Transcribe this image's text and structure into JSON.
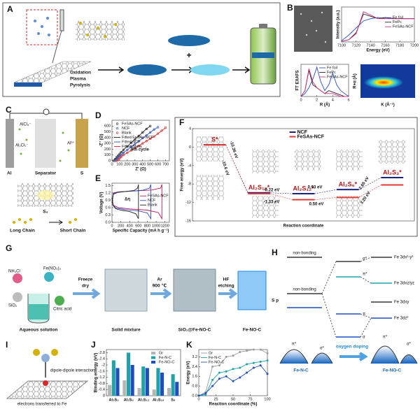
{
  "figure": {
    "panel_labels": [
      "A",
      "B",
      "C",
      "D",
      "E",
      "F",
      "G",
      "H",
      "I",
      "J",
      "K"
    ],
    "a_steps": [
      "Oxidation",
      "Plasma",
      "Pyrolysis"
    ],
    "b_wavelet": {
      "xlabel": "K (Å⁻¹)",
      "ylabel": "R+α (Å)"
    },
    "c_labels": [
      "AlCl₄⁻",
      "Al₂Cl₇⁻",
      "Al",
      "Separator",
      "S",
      "Al³⁺",
      "S₈",
      "Long Chain",
      "Short Chain"
    ],
    "g_labels": [
      "NH₄Cl",
      "Fe(NO₃)₃",
      "SiO₂",
      "Citric acid",
      "Aqueous solution",
      "Freeze",
      "dry",
      "Solid mixture",
      "Ar",
      "900 ℃",
      "SiO₂@Fe-NO-C",
      "HF",
      "etching",
      "Fe-NO-C"
    ],
    "h_labels": [
      "Fe 3dx²-y²",
      "non-bonding",
      "σ*",
      "π*",
      "Fe 3dxz/yz",
      "S p",
      "non-bonding",
      "Fe 3dxy",
      "π",
      "Fe 3dz²",
      "σ",
      "oxygen doping",
      "π*",
      "σ*",
      "π*",
      "σ*",
      "Fe-N-C",
      "Fe-NO-C"
    ],
    "i_labels": [
      "dipole-dipole interaction",
      "electrons transferred to Fe"
    ]
  },
  "chart_data": [
    {
      "type": "line",
      "xlabel": "Energy (eV)",
      "ylabel": "Intensity (a.u.)",
      "x": [
        7100,
        7110,
        7120,
        7130,
        7140,
        7150,
        7160,
        7170,
        7180,
        7190,
        7200
      ],
      "xlim": [
        7100,
        7200
      ],
      "xticks": [
        7100,
        7120,
        7140,
        7160,
        7180,
        7200
      ],
      "ylim": [
        0,
        1.5
      ],
      "legend": "center right",
      "series": [
        {
          "name": "Fe foil",
          "color": "#2b4fc4",
          "values": [
            0.05,
            0.3,
            0.6,
            0.9,
            1.0,
            1.05,
            1.0,
            1.0,
            1.0,
            1.0,
            1.0
          ]
        },
        {
          "name": "FePc",
          "color": "#222222",
          "values": [
            0.02,
            0.1,
            0.4,
            1.2,
            1.1,
            1.0,
            1.05,
            1.0,
            1.0,
            1.0,
            1.0
          ]
        },
        {
          "name": "FeSAs-NCF",
          "color": "#d63384",
          "values": [
            0.02,
            0.1,
            0.35,
            1.3,
            1.15,
            1.0,
            1.0,
            1.02,
            1.0,
            1.0,
            1.0
          ]
        }
      ]
    },
    {
      "type": "line",
      "xlabel": "R (Å)",
      "ylabel": "FT EXAFS",
      "x": [
        0,
        0.5,
        1,
        1.5,
        2,
        2.5,
        3,
        3.5,
        4,
        4.5,
        5,
        5.5,
        6
      ],
      "xlim": [
        0,
        6
      ],
      "xticks": [
        0,
        2,
        4,
        6
      ],
      "ylim": [
        0,
        1.1
      ],
      "legend": "upper right",
      "series": [
        {
          "name": "Fe foil",
          "color": "#2b4fc4",
          "values": [
            0,
            0.1,
            0.3,
            0.6,
            1.0,
            0.5,
            0.2,
            0.4,
            0.8,
            0.4,
            0.2,
            0.1,
            0
          ]
        },
        {
          "name": "FePc",
          "color": "#222222",
          "values": [
            0,
            0.2,
            0.9,
            0.4,
            0.3,
            0.2,
            0.1,
            0.2,
            0.15,
            0.1,
            0.05,
            0,
            0
          ]
        },
        {
          "name": "FeSAs-NCF",
          "color": "#d63384",
          "values": [
            0,
            0.2,
            0.95,
            0.5,
            0.3,
            0.2,
            0.1,
            0.1,
            0.1,
            0.05,
            0,
            0,
            0
          ]
        }
      ]
    },
    {
      "type": "line",
      "xlabel": "Z' (Ω)",
      "ylabel": "-Z'' (Ω)",
      "annotations": [
        "9th cycle"
      ],
      "x": [
        20,
        40,
        60,
        80,
        100,
        120,
        150,
        200,
        250,
        300,
        350,
        400,
        450,
        500,
        550,
        600,
        650,
        700
      ],
      "xlim": [
        0,
        750
      ],
      "xticks": [
        0,
        100,
        200,
        300,
        400,
        500,
        600,
        700
      ],
      "ylim": [
        0,
        700
      ],
      "yticks": [
        0,
        100,
        200,
        300,
        400,
        500,
        600
      ],
      "legend": "upper left",
      "series": [
        {
          "name": "FeSAs-NCF",
          "color": "#222222",
          "style": "marker",
          "values": [
            0,
            30,
            60,
            90,
            120,
            150,
            190,
            250,
            310,
            370,
            430,
            490,
            550,
            600,
            null,
            null,
            null,
            null
          ]
        },
        {
          "name": "NCF",
          "color": "#2b4fc4",
          "style": "marker",
          "values": [
            null,
            0,
            25,
            55,
            80,
            105,
            140,
            190,
            240,
            290,
            340,
            390,
            440,
            490,
            540,
            580,
            null,
            null
          ]
        },
        {
          "name": "Blank",
          "color": "#d62828",
          "style": "marker",
          "values": [
            null,
            null,
            0,
            20,
            45,
            70,
            100,
            140,
            180,
            220,
            260,
            300,
            340,
            380,
            420,
            470,
            520,
            570
          ]
        },
        {
          "name": "Fitted FeSAs-NCF",
          "color": "#222222",
          "values": [
            0,
            30,
            60,
            90,
            120,
            150,
            190,
            250,
            310,
            370,
            430,
            490,
            550,
            600,
            null,
            null,
            null,
            null
          ]
        },
        {
          "name": "Fitted NCF",
          "color": "#2b4fc4",
          "values": [
            null,
            0,
            25,
            55,
            80,
            105,
            140,
            190,
            240,
            290,
            340,
            390,
            440,
            490,
            540,
            580,
            null,
            null
          ]
        },
        {
          "name": "Fitted Blank",
          "color": "#d62828",
          "values": [
            null,
            null,
            0,
            20,
            45,
            70,
            100,
            140,
            180,
            220,
            260,
            300,
            340,
            380,
            420,
            470,
            520,
            570
          ]
        }
      ]
    },
    {
      "type": "line",
      "xlabel": "Specific Capacity (mA h g⁻¹)",
      "ylabel": "Voltage (V)",
      "annotations": [
        "Δη"
      ],
      "xlim": [
        0,
        1300
      ],
      "xticks": [
        0,
        200,
        400,
        600,
        800,
        1000,
        1200
      ],
      "ylim": [
        0,
        1.6
      ],
      "yticks": [
        {
          "value": 0,
          "label": "0.0"
        },
        0.3,
        0.6,
        0.9,
        1.2,
        1.5
      ],
      "legend": "center right",
      "series": [
        {
          "name": "FeSAs-NCF",
          "color": "#c2185b",
          "x": [
            0,
            30,
            150,
            500,
            900,
            1100,
            1130,
            1130,
            1050,
            800,
            400,
            150,
            30,
            0
          ],
          "values": [
            0.8,
            1.2,
            1.25,
            1.28,
            1.32,
            1.4,
            1.55,
            0.15,
            0.4,
            0.5,
            0.55,
            0.6,
            0.7,
            1.0
          ]
        },
        {
          "name": "NCF",
          "color": "#2b4fc4",
          "x": [
            0,
            30,
            150,
            400,
            700,
            850,
            880,
            880,
            800,
            600,
            300,
            100,
            20,
            0
          ],
          "values": [
            0.8,
            1.18,
            1.24,
            1.27,
            1.31,
            1.4,
            1.55,
            0.15,
            0.38,
            0.47,
            0.52,
            0.58,
            0.7,
            1.0
          ]
        },
        {
          "name": "Blank",
          "color": "#222222",
          "x": [
            0,
            30,
            120,
            300,
            500,
            580,
            600,
            600,
            540,
            400,
            200,
            80,
            20,
            0
          ],
          "values": [
            0.8,
            1.15,
            1.22,
            1.26,
            1.3,
            1.4,
            1.55,
            0.15,
            0.35,
            0.44,
            0.5,
            0.56,
            0.7,
            1.0
          ]
        }
      ]
    },
    {
      "type": "energy",
      "xlabel": "Reaction coordinate",
      "ylabel": "Free energy (eV)",
      "categories": [
        "S*",
        "Al₂S₁₈*",
        "Al₂S₁₂*",
        "Al₂S₆*",
        "Al₂S₃*"
      ],
      "ylim": [
        -16,
        4
      ],
      "yticks": [
        4,
        0,
        -4,
        -8,
        -12,
        -16
      ],
      "legend": "upper center",
      "annotations": [
        "-10.36 eV",
        "-10.6 eV",
        "-0.22 eV",
        "-1.33 eV",
        "0.93 eV",
        "0.50 eV",
        "2.65 eV",
        "3.20 eV"
      ],
      "series": [
        {
          "name": "NCF",
          "color": "#1a237e",
          "values": [
            0.5,
            -9.9,
            -10.1,
            -9.2,
            -6.6
          ]
        },
        {
          "name": "FeSAs-NCF",
          "color": "#e53935",
          "values": [
            0.5,
            -10.1,
            -11.4,
            -10.9,
            -8.2
          ]
        }
      ]
    },
    {
      "type": "bar",
      "ylabel": "Binding energy (eV)",
      "categories": [
        "Al₂S₃",
        "Al₂S₆",
        "Al₂S₁₂",
        "Al₂S₁₈",
        "S₈"
      ],
      "ylim": [
        0,
        -3
      ],
      "yticks": [
        0,
        -0.4,
        -0.8,
        -1.2,
        -1.6,
        -2.0,
        -2.4,
        -2.8
      ],
      "legend": "upper right",
      "series": [
        {
          "name": "Gr",
          "color": "#b5b5b5",
          "values": [
            -0.7,
            -1.0,
            -0.5,
            -0.4,
            -0.5
          ]
        },
        {
          "name": "Fe-N-C",
          "color": "#1fa3a8",
          "values": [
            -2.3,
            -2.8,
            -1.9,
            -1.8,
            -1.4
          ]
        },
        {
          "name": "Fe-NO-C",
          "color": "#1f4fbf",
          "values": [
            -1.8,
            -2.0,
            -1.8,
            -1.5,
            -0.9
          ]
        }
      ]
    },
    {
      "type": "line",
      "xlabel": "Reaction coordinate (%)",
      "ylabel": "Energy (eV)",
      "markers": true,
      "x": [
        0,
        10,
        20,
        30,
        40,
        50,
        60,
        70,
        80,
        90,
        100
      ],
      "xlim": [
        0,
        100
      ],
      "xticks": [
        0,
        25,
        50,
        75,
        100
      ],
      "ylim": [
        0,
        3.8
      ],
      "yticks": [
        {
          "value": 0,
          "label": "0.0"
        },
        0.8,
        1.6,
        2.4,
        3.2
      ],
      "legend": "upper left",
      "series": [
        {
          "name": "Gr",
          "color": "#9e9e9e",
          "values": [
            0,
            0.3,
            2.4,
            2.5,
            3.2,
            3.3,
            3.6,
            3.7,
            3.8,
            3.8,
            3.5
          ]
        },
        {
          "name": "Fe-N-C",
          "color": "#1fa3a8",
          "values": [
            0,
            0.1,
            1.3,
            1.9,
            2.0,
            2.2,
            2.3,
            2.6,
            2.7,
            2.8,
            2.9
          ]
        },
        {
          "name": "Fe-NO-C",
          "color": "#1f4fbf",
          "values": [
            0,
            0.2,
            0.8,
            1.4,
            1.6,
            1.2,
            1.5,
            1.9,
            2.3,
            2.5,
            1.8
          ]
        }
      ]
    }
  ]
}
